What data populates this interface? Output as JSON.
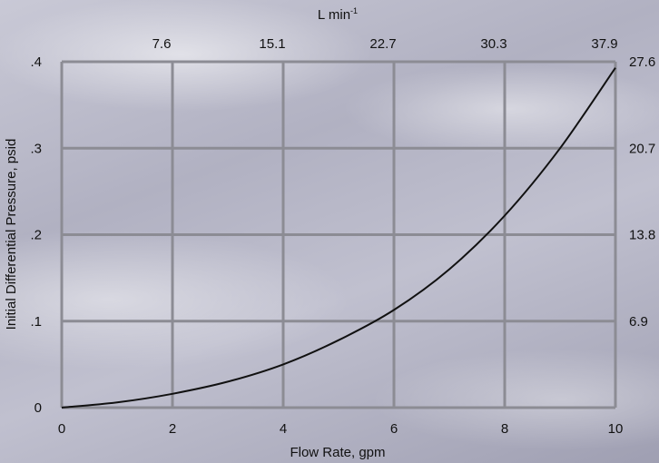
{
  "chart_data": {
    "type": "line",
    "xlabel": "Flow Rate, gpm",
    "ylabel": "Initial Differential Pressure, psid",
    "x2label_base": "L min",
    "x2label_exp": "-1",
    "xlim": [
      0,
      10
    ],
    "ylim": [
      0,
      0.4
    ],
    "x_ticks": [
      "0",
      "2",
      "4",
      "6",
      "8",
      "10"
    ],
    "y_ticks": [
      "0",
      ".1",
      ".2",
      ".3",
      ".4"
    ],
    "x2_ticks": [
      "7.6",
      "15.1",
      "22.7",
      "30.3",
      "37.9"
    ],
    "y2_ticks": [
      "6.9",
      "13.8",
      "20.7",
      "27.6"
    ],
    "grid": true,
    "series": [
      {
        "x": [
          0,
          1,
          2,
          3,
          4,
          5,
          6,
          7,
          8,
          9,
          10
        ],
        "y": [
          0,
          0.006,
          0.016,
          0.03,
          0.05,
          0.078,
          0.113,
          0.16,
          0.222,
          0.3,
          0.393
        ]
      }
    ]
  }
}
